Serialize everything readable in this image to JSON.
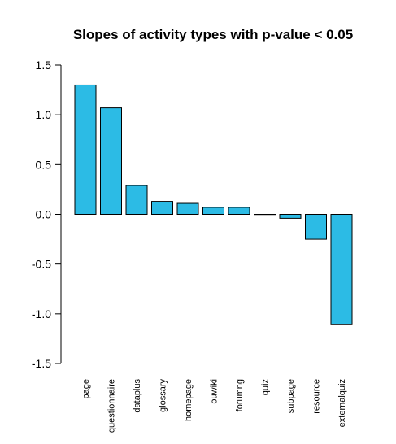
{
  "chart_data": {
    "type": "bar",
    "title": "Slopes of activity types with p-value < 0.05",
    "xlabel": "",
    "ylabel": "",
    "ylim": [
      -1.5,
      1.5
    ],
    "yticks": [
      "1.5",
      "1.0",
      "0.5",
      "0.0",
      "-0.5",
      "-1.0",
      "-1.5"
    ],
    "ytick_values": [
      1.5,
      1.0,
      0.5,
      0.0,
      -0.5,
      -1.0,
      -1.5
    ],
    "categories": [
      "page",
      "questionnaire",
      "dataplus",
      "glossary",
      "homepage",
      "ouwiki",
      "forumng",
      "quiz",
      "subpage",
      "resource",
      "externalquiz"
    ],
    "values": [
      1.3,
      1.07,
      0.29,
      0.13,
      0.11,
      0.07,
      0.07,
      -0.01,
      -0.04,
      -0.25,
      -1.11
    ],
    "bar_color": "#2cbbe5",
    "grid": false
  }
}
